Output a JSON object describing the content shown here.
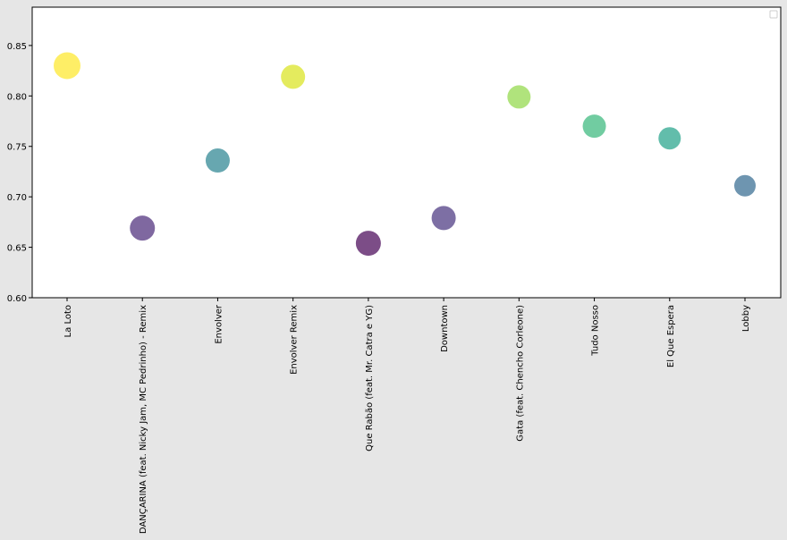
{
  "chart_data": {
    "type": "scatter",
    "title": "",
    "xlabel": "",
    "ylabel": "",
    "categories": [
      "La Loto",
      "DANÇARINA (feat. Nicky Jam, MC Pedrinho) - Remix",
      "Envolver",
      "Envolver Remix",
      "Que Rabão (feat. Mr. Catra e YG)",
      "Downtown",
      "Gata (feat. Chencho Corleone)",
      "Tudo Nosso",
      "El Que Espera",
      "Lobby"
    ],
    "values": [
      0.83,
      0.669,
      0.736,
      0.819,
      0.654,
      0.679,
      0.799,
      0.77,
      0.758,
      0.711
    ],
    "ylim": [
      0.6,
      0.888
    ],
    "yticks": [
      "0.60",
      "0.65",
      "0.70",
      "0.75",
      "0.80",
      "0.85"
    ],
    "grid": false,
    "legend": {
      "placement": "top-right",
      "entries": []
    },
    "colors": {
      "figure_background": "#e6e6e6",
      "plot_background": "#ffffff",
      "points": [
        "#fde725",
        "#482878",
        "#26828e",
        "#d8e219",
        "#440154",
        "#46327e",
        "#8fd744",
        "#35b779",
        "#1fa187",
        "#31688e"
      ]
    },
    "marker_opacity": 0.7
  }
}
